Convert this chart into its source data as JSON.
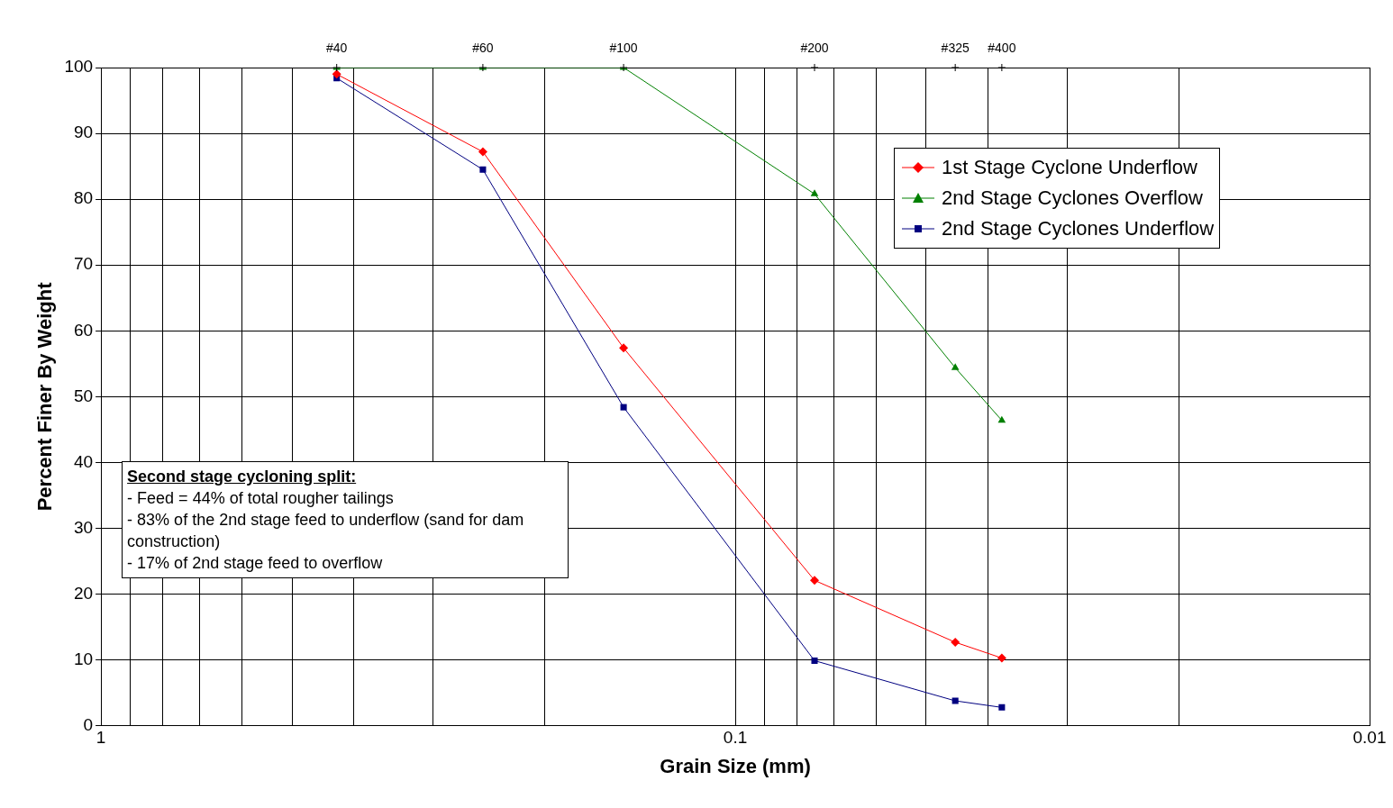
{
  "chart_data": {
    "type": "line",
    "xlabel": "Grain Size (mm)",
    "ylabel": "Percent Finer By Weight",
    "x": [
      0.425,
      0.25,
      0.15,
      0.075,
      0.045,
      0.038
    ],
    "series": [
      {
        "name": "1st Stage Cyclone Underflow",
        "color": "#ff0000",
        "marker": "diamond",
        "values": [
          99.0,
          87.2,
          57.4,
          22.1,
          12.7,
          10.3
        ]
      },
      {
        "name": "2nd Stage Cyclones Overflow",
        "color": "#008000",
        "marker": "triangle",
        "values": [
          100,
          100,
          100,
          80.8,
          54.4,
          46.4
        ]
      },
      {
        "name": "2nd Stage Cyclones Underflow",
        "color": "#000080",
        "marker": "square",
        "values": [
          98.4,
          84.5,
          48.4,
          9.9,
          3.8,
          2.8
        ]
      }
    ],
    "log": "x",
    "xlim": [
      1,
      0.01
    ],
    "xticks": [
      1,
      {
        "value": 0.9,
        "label": null
      },
      {
        "value": 0.8,
        "label": null
      },
      {
        "value": 0.7,
        "label": null
      },
      {
        "value": 0.6,
        "label": null
      },
      {
        "value": 0.5,
        "label": null
      },
      {
        "value": 0.4,
        "label": null
      },
      {
        "value": 0.3,
        "label": null
      },
      {
        "value": 0.2,
        "label": null
      },
      0.1,
      {
        "value": 0.09,
        "label": null
      },
      {
        "value": 0.08,
        "label": null
      },
      {
        "value": 0.07,
        "label": null
      },
      {
        "value": 0.06,
        "label": null
      },
      {
        "value": 0.05,
        "label": null
      },
      {
        "value": 0.04,
        "label": null
      },
      {
        "value": 0.03,
        "label": null
      },
      {
        "value": 0.02,
        "label": null
      },
      0.01
    ],
    "ylim": [
      0,
      100
    ],
    "yticks": [
      0,
      10,
      20,
      30,
      40,
      50,
      60,
      70,
      80,
      90,
      100
    ],
    "grid": true,
    "legend": "top right",
    "line_style": "solid",
    "annotations": [
      {
        "text": "#40",
        "x": 0.425
      },
      {
        "text": "#60",
        "x": 0.25
      },
      {
        "text": "#100",
        "x": 0.15
      },
      {
        "text": "#200",
        "x": 0.075
      },
      {
        "text": "#325",
        "x": 0.045
      },
      {
        "text": "#400",
        "x": 0.038
      },
      "Second stage cycloning split:",
      "- Feed = 44% of total rougher tailings",
      "- 83% of the 2nd stage feed to underflow (sand for dam construction)",
      "- 17% of 2nd stage feed to overflow"
    ]
  }
}
